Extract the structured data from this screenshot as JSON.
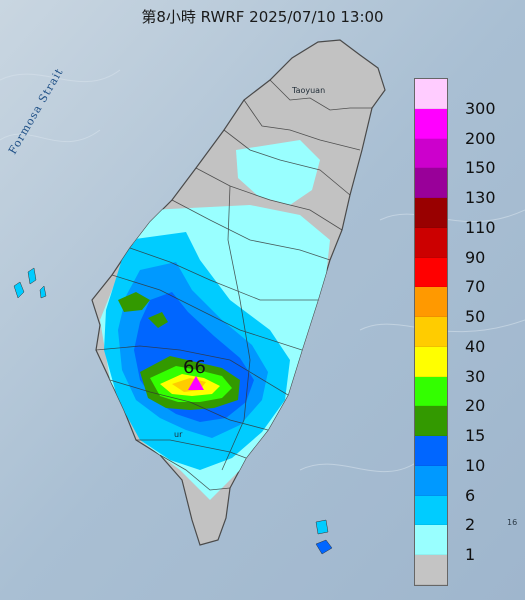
{
  "title": "第8小時  RWRF 2025/07/10 13:00",
  "strait_label": "Formosa Strait",
  "place_labels": {
    "taoyuan": "Taoyuan",
    "tainan": "ur"
  },
  "peak_value": "66",
  "edge_stamp": "16",
  "legend": {
    "labels": [
      "300",
      "200",
      "150",
      "130",
      "110",
      "90",
      "70",
      "50",
      "40",
      "30",
      "20",
      "15",
      "10",
      "6",
      "2",
      "1"
    ],
    "colors": [
      "#ffccff",
      "#ff00ff",
      "#cc00cc",
      "#990099",
      "#990000",
      "#cc0000",
      "#ff0000",
      "#ff9900",
      "#ffcc00",
      "#ffff00",
      "#33ff00",
      "#339900",
      "#0066ff",
      "#0099ff",
      "#00ccff",
      "#99ffff",
      "#c4c4c4"
    ]
  },
  "colors": {
    "sea": "#b9c9d8",
    "land_no_rain": "#c2c2c2",
    "peak_marker": "#ff00ff"
  }
}
